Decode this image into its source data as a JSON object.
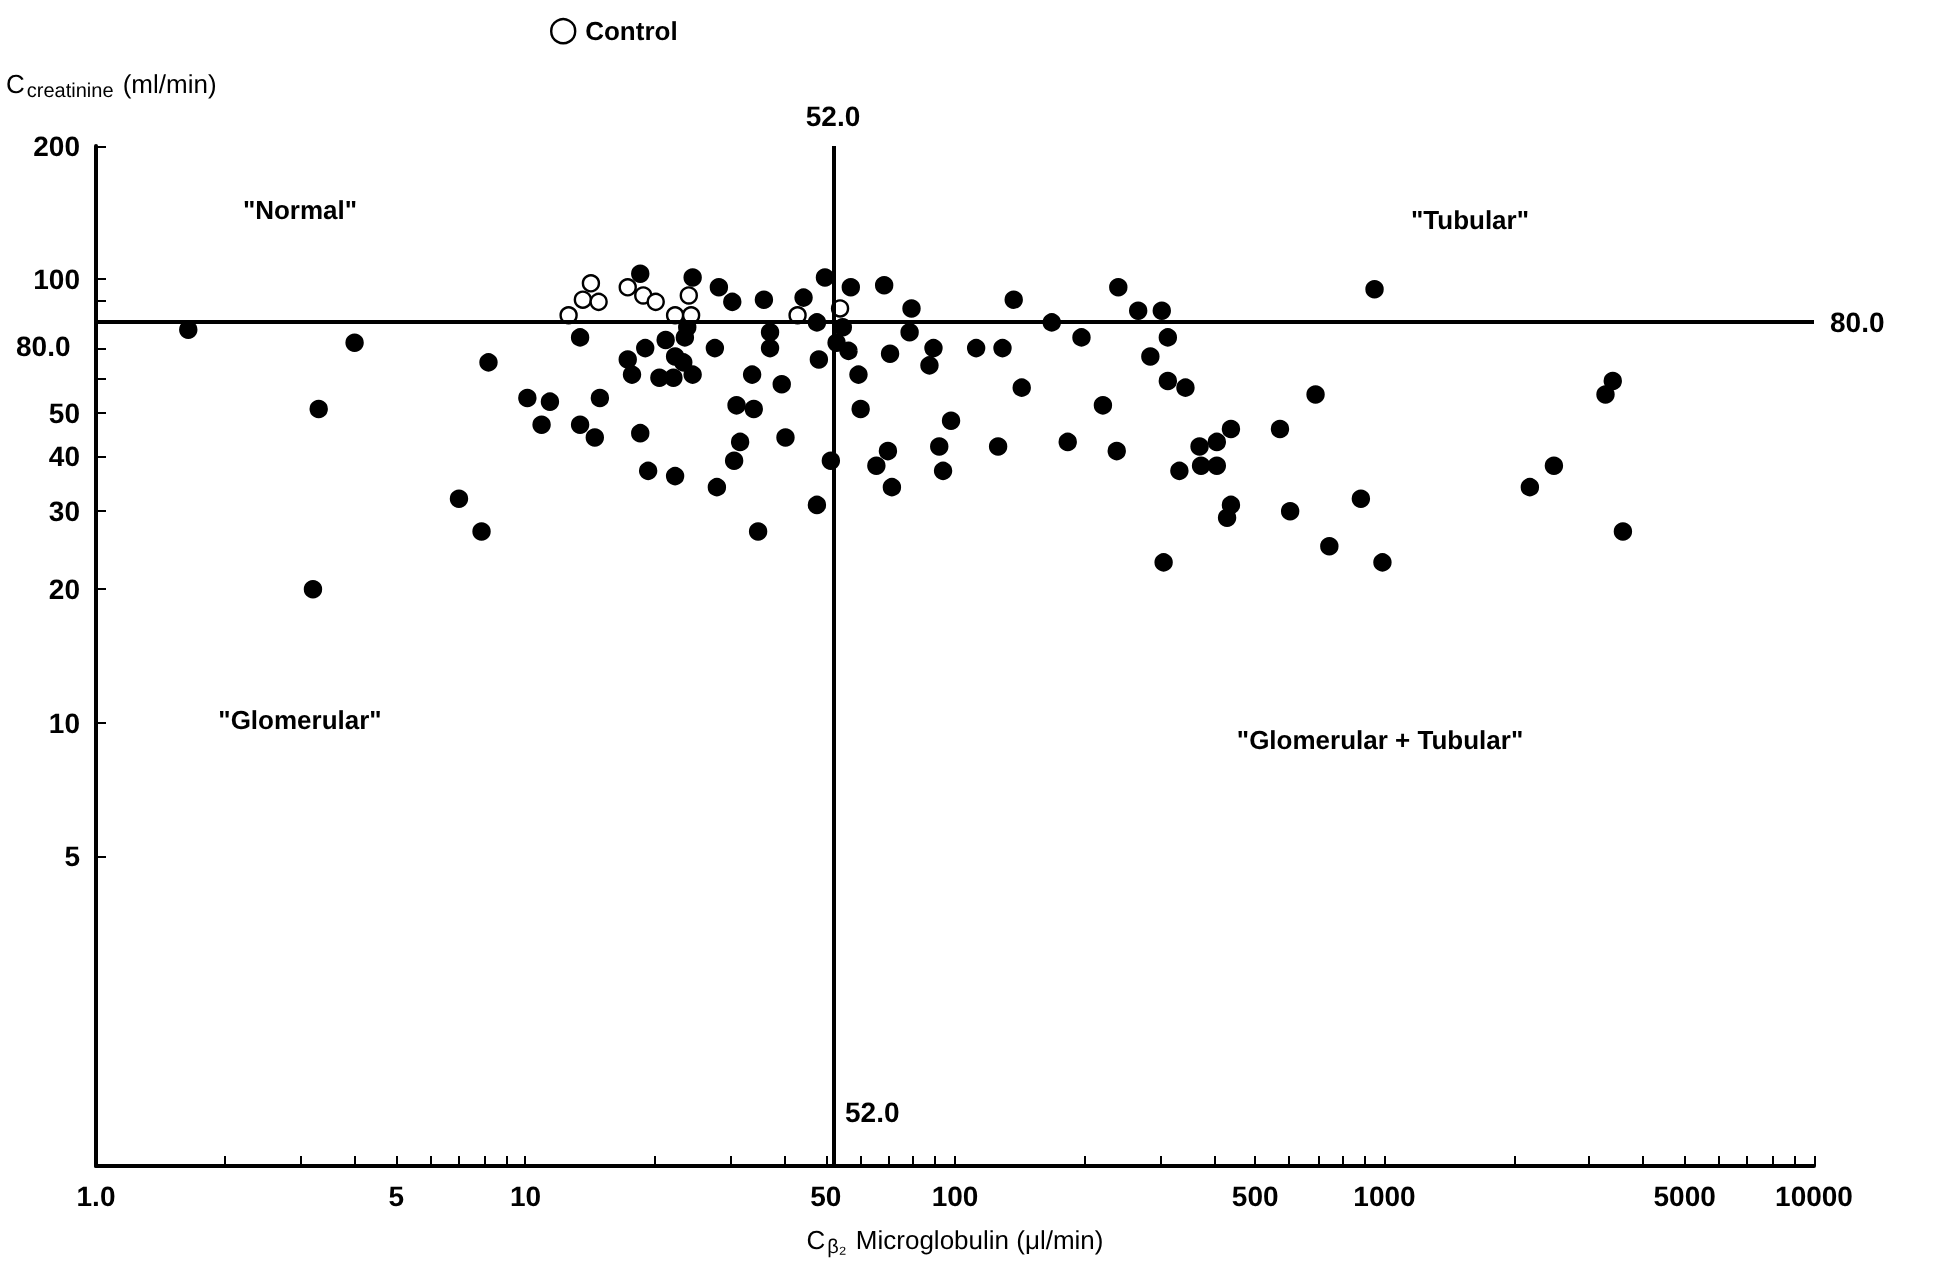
{
  "chart_data": {
    "type": "scatter",
    "xlabel": "C$_{β₂}$ Microglobulin (μl/min)",
    "ylabel": "C$_{creatinine}$ (ml/min)",
    "log": "xy",
    "legend": "top",
    "marker": "circle",
    "xlim": [
      1,
      10000
    ],
    "ylim": [
      1,
      200
    ],
    "xticks": [
      {
        "value": 1,
        "label": "1.0"
      },
      {
        "value": 2,
        "label": null
      },
      {
        "value": 3,
        "label": null
      },
      {
        "value": 4,
        "label": null
      },
      5,
      {
        "value": 6,
        "label": null
      },
      {
        "value": 7,
        "label": null
      },
      {
        "value": 8,
        "label": null
      },
      {
        "value": 9,
        "label": null
      },
      10,
      {
        "value": 20,
        "label": null
      },
      {
        "value": 30,
        "label": null
      },
      {
        "value": 40,
        "label": null
      },
      50,
      {
        "value": 60,
        "label": null
      },
      {
        "value": 70,
        "label": null
      },
      {
        "value": 80,
        "label": null
      },
      {
        "value": 90,
        "label": null
      },
      100,
      {
        "value": 200,
        "label": null
      },
      {
        "value": 300,
        "label": null
      },
      {
        "value": 400,
        "label": null
      },
      500,
      {
        "value": 600,
        "label": null
      },
      {
        "value": 700,
        "label": null
      },
      {
        "value": 800,
        "label": null
      },
      {
        "value": 900,
        "label": null
      },
      1000,
      {
        "value": 2000,
        "label": null
      },
      {
        "value": 3000,
        "label": null
      },
      {
        "value": 4000,
        "label": null
      },
      5000,
      {
        "value": 6000,
        "label": null
      },
      {
        "value": 7000,
        "label": null
      },
      {
        "value": 8000,
        "label": null
      },
      {
        "value": 9000,
        "label": null
      },
      10000
    ],
    "yticks": [
      5,
      10,
      20,
      30,
      40,
      50,
      {
        "value": 60,
        "label": null
      },
      {
        "value": 70,
        "label": null
      },
      {
        "value": 80,
        "label": null
      },
      {
        "value": 90,
        "label": null
      },
      100,
      200
    ],
    "ref_lines": [
      {
        "axis": "x",
        "value": 52,
        "label": "52.0",
        "color": "#000000"
      },
      {
        "axis": "y",
        "value": 80,
        "label": "80.0",
        "color": "#000000"
      }
    ],
    "annotations": [
      "\"Normal\"",
      "\"Tubular\"",
      "\"Glomerular\"",
      "\"Glomerular + Tubular\""
    ],
    "series": [
      {
        "color": "#000000",
        "x": [
          1.64,
          3.2,
          3.3,
          4.0,
          7.0,
          7.9,
          8.2,
          10.1,
          11.4,
          10.9,
          13.4,
          13.4,
          14.5,
          14.9,
          17.3,
          17.7,
          18.5,
          19.0,
          18.5,
          19.3,
          20.5,
          21.2,
          22.1,
          22.3,
          23.5,
          23.8,
          23.3,
          24.5,
          24.5,
          22.3,
          27.6,
          28.2,
          30.3,
          31.0,
          31.6,
          30.6,
          27.9,
          33.7,
          34.0,
          34.8,
          35.9,
          37.1,
          37.1,
          39.5,
          40.3,
          44.4,
          47.7,
          48.2,
          49.8,
          51.4,
          47.7,
          53,
          54.8,
          56.5,
          57.2,
          59.6,
          60.3,
          68.4,
          70.6,
          79.2,
          78.4,
          89.1,
          87.2,
          97.9,
          91.9,
          93.8,
          69.8,
          65.6,
          71.3,
          112,
          126,
          129,
          137,
          143,
          168,
          183,
          197,
          221,
          238,
          240,
          267,
          303,
          285,
          313,
          313,
          344,
          306,
          333,
          371,
          374,
          407,
          407,
          439,
          439,
          430,
          571,
          603,
          691,
          744,
          881,
          948,
          989,
          2180,
          2480,
          3270,
          3400,
          3590
        ],
        "values": [
          77,
          20,
          51,
          72,
          32,
          27,
          65,
          54,
          53,
          47,
          74,
          47,
          44,
          54,
          66,
          61,
          103,
          70,
          45,
          37,
          60,
          73,
          60,
          67,
          74,
          78,
          65,
          61,
          101,
          36,
          70,
          96,
          89,
          52,
          43,
          39,
          34,
          61,
          51,
          27,
          90,
          76,
          70,
          58,
          44,
          91,
          80,
          66,
          101,
          39,
          31,
          72,
          78,
          69,
          96,
          61,
          51,
          97,
          68,
          86,
          76,
          70,
          64,
          48,
          42,
          37,
          41,
          38,
          34,
          70,
          42,
          70,
          90,
          57,
          80,
          43,
          74,
          52,
          41,
          96,
          85,
          85,
          67,
          74,
          59,
          57,
          23,
          37,
          42,
          38,
          43,
          38,
          46,
          31,
          29,
          46,
          30,
          55,
          25,
          32,
          95,
          23,
          34,
          38,
          55,
          59,
          27
        ]
      },
      {
        "name": "Control",
        "color": "#ffffff",
        "x": [
          12.6,
          13.6,
          14.2,
          14.8,
          17.3,
          18.8,
          20.1,
          22.3,
          24.0,
          24.3,
          43,
          54
        ],
        "values": [
          83,
          90,
          98,
          89,
          96,
          92,
          89,
          83,
          92,
          83,
          83,
          86
        ]
      }
    ]
  }
}
